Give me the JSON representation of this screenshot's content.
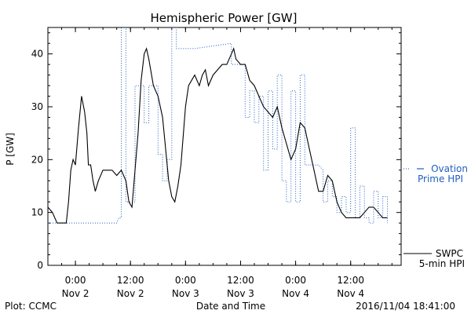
{
  "chart_data": {
    "type": "line",
    "title": "Hemispheric Power [GW]",
    "ylabel": "P [GW]",
    "xlabel": "Date and Time",
    "ylim": [
      0,
      45
    ],
    "xlim": [
      "2016-11-01T18:00",
      "2016-11-04T23:00"
    ],
    "yticks": [
      0,
      10,
      20,
      30,
      40
    ],
    "xticks": [
      {
        "time": "2016-11-02T00:00",
        "label": "0:00",
        "sublabel": "Nov 2"
      },
      {
        "time": "2016-11-02T12:00",
        "label": "12:00",
        "sublabel": "Nov 2"
      },
      {
        "time": "2016-11-03T00:00",
        "label": "0:00",
        "sublabel": "Nov 3"
      },
      {
        "time": "2016-11-03T12:00",
        "label": "12:00",
        "sublabel": "Nov 3"
      },
      {
        "time": "2016-11-04T00:00",
        "label": "0:00",
        "sublabel": "Nov 4"
      },
      {
        "time": "2016-11-04T12:00",
        "label": "12:00",
        "sublabel": "Nov 4"
      }
    ],
    "grid": false,
    "footer_left": "Plot: CCMC",
    "footer_right": "2016/11/04 18:41:00",
    "series": [
      {
        "name": "SWPC 5-min HPI",
        "legend_lines": [
          "SWPC",
          "5-min HPI"
        ],
        "color": "#000000",
        "style": "solid",
        "points": [
          [
            "2016-11-01T18:00",
            11
          ],
          [
            "2016-11-01T19:00",
            10
          ],
          [
            "2016-11-01T20:00",
            8
          ],
          [
            "2016-11-01T21:00",
            8
          ],
          [
            "2016-11-01T22:00",
            8
          ],
          [
            "2016-11-01T22:30",
            12
          ],
          [
            "2016-11-01T23:00",
            18
          ],
          [
            "2016-11-01T23:30",
            20
          ],
          [
            "2016-11-02T00:00",
            19
          ],
          [
            "2016-11-02T00:40",
            26
          ],
          [
            "2016-11-02T01:20",
            32
          ],
          [
            "2016-11-02T02:00",
            29
          ],
          [
            "2016-11-02T02:30",
            25
          ],
          [
            "2016-11-02T02:50",
            19
          ],
          [
            "2016-11-02T03:20",
            19
          ],
          [
            "2016-11-02T03:50",
            16
          ],
          [
            "2016-11-02T04:20",
            14
          ],
          [
            "2016-11-02T05:00",
            16
          ],
          [
            "2016-11-02T06:00",
            18
          ],
          [
            "2016-11-02T07:00",
            18
          ],
          [
            "2016-11-02T08:00",
            18
          ],
          [
            "2016-11-02T09:00",
            17
          ],
          [
            "2016-11-02T10:00",
            18
          ],
          [
            "2016-11-02T11:00",
            16
          ],
          [
            "2016-11-02T11:40",
            12
          ],
          [
            "2016-11-02T12:20",
            11
          ],
          [
            "2016-11-02T13:00",
            18
          ],
          [
            "2016-11-02T13:40",
            25
          ],
          [
            "2016-11-02T14:20",
            35
          ],
          [
            "2016-11-02T15:00",
            40
          ],
          [
            "2016-11-02T15:30",
            41
          ],
          [
            "2016-11-02T16:00",
            39
          ],
          [
            "2016-11-02T17:00",
            34
          ],
          [
            "2016-11-02T18:00",
            32
          ],
          [
            "2016-11-02T19:00",
            28
          ],
          [
            "2016-11-02T19:40",
            22
          ],
          [
            "2016-11-02T20:20",
            16
          ],
          [
            "2016-11-02T21:00",
            13
          ],
          [
            "2016-11-02T21:40",
            12
          ],
          [
            "2016-11-02T22:20",
            15
          ],
          [
            "2016-11-02T23:00",
            19
          ],
          [
            "2016-11-03T00:00",
            30
          ],
          [
            "2016-11-03T00:40",
            34
          ],
          [
            "2016-11-03T01:20",
            35
          ],
          [
            "2016-11-03T02:00",
            36
          ],
          [
            "2016-11-03T03:00",
            34
          ],
          [
            "2016-11-03T03:40",
            36
          ],
          [
            "2016-11-03T04:20",
            37
          ],
          [
            "2016-11-03T05:00",
            34
          ],
          [
            "2016-11-03T06:00",
            36
          ],
          [
            "2016-11-03T07:00",
            37
          ],
          [
            "2016-11-03T08:00",
            38
          ],
          [
            "2016-11-03T09:00",
            38
          ],
          [
            "2016-11-03T10:00",
            40
          ],
          [
            "2016-11-03T10:30",
            41
          ],
          [
            "2016-11-03T11:00",
            39
          ],
          [
            "2016-11-03T12:00",
            38
          ],
          [
            "2016-11-03T13:00",
            38
          ],
          [
            "2016-11-03T14:00",
            35
          ],
          [
            "2016-11-03T15:00",
            34
          ],
          [
            "2016-11-03T16:00",
            32
          ],
          [
            "2016-11-03T17:00",
            30
          ],
          [
            "2016-11-03T18:00",
            29
          ],
          [
            "2016-11-03T19:00",
            28
          ],
          [
            "2016-11-03T20:00",
            30
          ],
          [
            "2016-11-03T21:00",
            26
          ],
          [
            "2016-11-03T22:00",
            23
          ],
          [
            "2016-11-03T23:00",
            20
          ],
          [
            "2016-11-04T00:00",
            22
          ],
          [
            "2016-11-04T01:00",
            27
          ],
          [
            "2016-11-04T02:00",
            26
          ],
          [
            "2016-11-04T03:00",
            22
          ],
          [
            "2016-11-04T04:00",
            18
          ],
          [
            "2016-11-04T05:00",
            14
          ],
          [
            "2016-11-04T06:00",
            14
          ],
          [
            "2016-11-04T07:00",
            17
          ],
          [
            "2016-11-04T08:00",
            16
          ],
          [
            "2016-11-04T09:00",
            12
          ],
          [
            "2016-11-04T10:00",
            10
          ],
          [
            "2016-11-04T11:00",
            9
          ],
          [
            "2016-11-04T12:00",
            9
          ],
          [
            "2016-11-04T13:00",
            9
          ],
          [
            "2016-11-04T14:00",
            9
          ],
          [
            "2016-11-04T15:00",
            10
          ],
          [
            "2016-11-04T16:00",
            11
          ],
          [
            "2016-11-04T17:00",
            11
          ],
          [
            "2016-11-04T18:00",
            10
          ],
          [
            "2016-11-04T19:00",
            9
          ],
          [
            "2016-11-04T20:00",
            9
          ]
        ]
      },
      {
        "name": "Ovation Prime HPI",
        "legend_lines": [
          "Ovation",
          "Prime HPI"
        ],
        "color": "#1f5fbf",
        "style": "dotted",
        "points": [
          [
            "2016-11-01T18:00",
            8
          ],
          [
            "2016-11-02T09:00",
            8
          ],
          [
            "2016-11-02T09:30",
            9
          ],
          [
            "2016-11-02T10:00",
            9
          ],
          [
            "2016-11-02T10:00",
            45
          ],
          [
            "2016-11-02T11:00",
            45
          ],
          [
            "2016-11-02T11:00",
            12
          ],
          [
            "2016-11-02T13:00",
            12
          ],
          [
            "2016-11-02T13:00",
            34
          ],
          [
            "2016-11-02T15:00",
            34
          ],
          [
            "2016-11-02T15:00",
            27
          ],
          [
            "2016-11-02T16:00",
            27
          ],
          [
            "2016-11-02T16:00",
            34
          ],
          [
            "2016-11-02T18:00",
            34
          ],
          [
            "2016-11-02T18:00",
            21
          ],
          [
            "2016-11-02T19:00",
            21
          ],
          [
            "2016-11-02T19:00",
            16
          ],
          [
            "2016-11-02T20:00",
            16
          ],
          [
            "2016-11-02T20:00",
            20
          ],
          [
            "2016-11-02T21:00",
            20
          ],
          [
            "2016-11-02T21:00",
            45
          ],
          [
            "2016-11-02T22:00",
            45
          ],
          [
            "2016-11-02T22:00",
            41
          ],
          [
            "2016-11-03T02:00",
            41
          ],
          [
            "2016-11-03T10:00",
            42
          ],
          [
            "2016-11-03T10:00",
            38
          ],
          [
            "2016-11-03T13:00",
            38
          ],
          [
            "2016-11-03T13:00",
            28
          ],
          [
            "2016-11-03T14:00",
            28
          ],
          [
            "2016-11-03T14:00",
            33
          ],
          [
            "2016-11-03T15:00",
            33
          ],
          [
            "2016-11-03T15:00",
            27
          ],
          [
            "2016-11-03T16:00",
            27
          ],
          [
            "2016-11-03T16:00",
            32
          ],
          [
            "2016-11-03T17:00",
            32
          ],
          [
            "2016-11-03T17:00",
            18
          ],
          [
            "2016-11-03T18:00",
            18
          ],
          [
            "2016-11-03T18:00",
            33
          ],
          [
            "2016-11-03T19:00",
            33
          ],
          [
            "2016-11-03T19:00",
            22
          ],
          [
            "2016-11-03T20:00",
            22
          ],
          [
            "2016-11-03T20:00",
            36
          ],
          [
            "2016-11-03T21:00",
            36
          ],
          [
            "2016-11-03T21:00",
            16
          ],
          [
            "2016-11-03T22:00",
            16
          ],
          [
            "2016-11-03T22:00",
            12
          ],
          [
            "2016-11-03T23:00",
            12
          ],
          [
            "2016-11-03T23:00",
            33
          ],
          [
            "2016-11-04T00:00",
            33
          ],
          [
            "2016-11-04T00:00",
            12
          ],
          [
            "2016-11-04T01:00",
            12
          ],
          [
            "2016-11-04T01:00",
            36
          ],
          [
            "2016-11-04T02:00",
            36
          ],
          [
            "2016-11-04T02:00",
            19
          ],
          [
            "2016-11-04T05:00",
            19
          ],
          [
            "2016-11-04T06:00",
            18
          ],
          [
            "2016-11-04T06:00",
            12
          ],
          [
            "2016-11-04T07:00",
            12
          ],
          [
            "2016-11-04T07:00",
            16
          ],
          [
            "2016-11-04T08:00",
            16
          ],
          [
            "2016-11-04T08:00",
            13
          ],
          [
            "2016-11-04T09:00",
            13
          ],
          [
            "2016-11-04T09:00",
            10
          ],
          [
            "2016-11-04T10:00",
            10
          ],
          [
            "2016-11-04T10:00",
            13
          ],
          [
            "2016-11-04T11:00",
            13
          ],
          [
            "2016-11-04T11:00",
            10
          ],
          [
            "2016-11-04T12:00",
            10
          ],
          [
            "2016-11-04T12:00",
            26
          ],
          [
            "2016-11-04T13:00",
            26
          ],
          [
            "2016-11-04T13:00",
            9
          ],
          [
            "2016-11-04T14:00",
            9
          ],
          [
            "2016-11-04T14:00",
            15
          ],
          [
            "2016-11-04T15:00",
            15
          ],
          [
            "2016-11-04T15:00",
            9
          ],
          [
            "2016-11-04T16:00",
            9
          ],
          [
            "2016-11-04T16:00",
            8
          ],
          [
            "2016-11-04T17:00",
            8
          ],
          [
            "2016-11-04T17:00",
            14
          ],
          [
            "2016-11-04T18:00",
            14
          ],
          [
            "2016-11-04T18:00",
            9
          ],
          [
            "2016-11-04T19:00",
            9
          ],
          [
            "2016-11-04T19:00",
            13
          ],
          [
            "2016-11-04T20:00",
            13
          ],
          [
            "2016-11-04T20:00",
            8
          ]
        ]
      }
    ]
  }
}
